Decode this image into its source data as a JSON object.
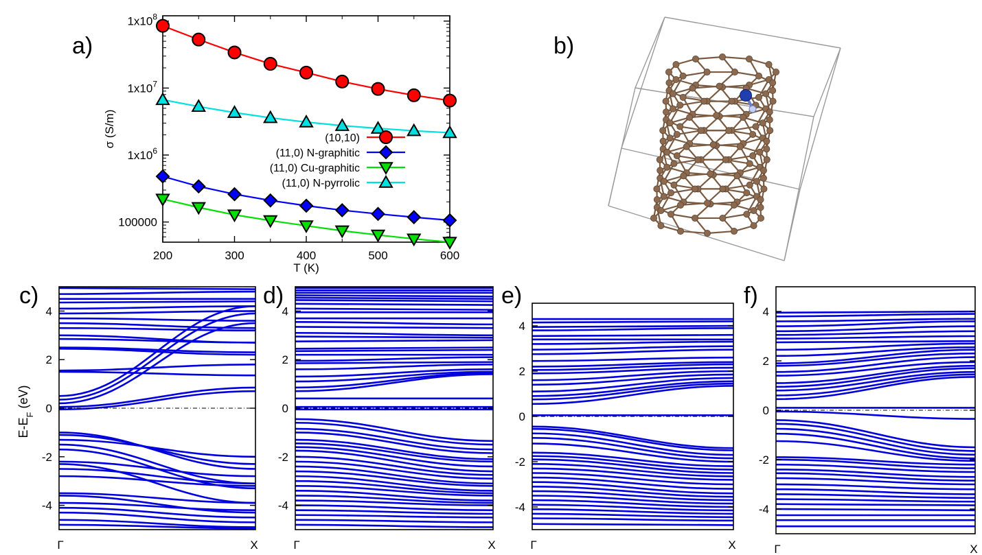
{
  "panel_labels": [
    "a)",
    "b)",
    "c)",
    "d)",
    "e)",
    "f)"
  ],
  "band_ylabel": "E-E",
  "band_ylabel_sub": "F",
  "band_ylabel_unit": " (eV)",
  "colors": {
    "series": [
      "#ff0000",
      "#0000ff",
      "#00e000",
      "#00e0e0"
    ],
    "bands": "#0000dd",
    "carbon": "#8b6a4f",
    "nitrogen": "#1f3fb0"
  },
  "chart_data": [
    {
      "type": "line",
      "panel": "a)",
      "xlabel": "T (K)",
      "ylabel": "σ (S/m)",
      "yscale": "log",
      "xlim": [
        200,
        600
      ],
      "ylim": [
        50000,
        120000000
      ],
      "xticks": [
        200,
        300,
        400,
        500,
        600
      ],
      "xtick_labels": [
        "200",
        "300",
        "400",
        "500",
        "600"
      ],
      "yticks": [
        100000,
        1000000,
        10000000,
        100000000
      ],
      "ytick_labels": [
        "100000",
        "1x10",
        "1x10",
        "1x10"
      ],
      "ytick_exponents": [
        "",
        "6",
        "7",
        "8"
      ],
      "legend_position": "center-right",
      "x": [
        200,
        250,
        300,
        350,
        400,
        450,
        500,
        550,
        600
      ],
      "series": [
        {
          "name": "(10,10)",
          "marker": "circle",
          "values": [
            85000000,
            53000000,
            34000000,
            23000000,
            17000000,
            12500000,
            9700000,
            7800000,
            6500000
          ]
        },
        {
          "name": "(11,0) N-graphitic",
          "marker": "diamond",
          "values": [
            480000,
            340000,
            260000,
            210000,
            175000,
            150000,
            132000,
            118000,
            106000
          ]
        },
        {
          "name": "(11,0) Cu-graphitic",
          "marker": "triangle-down",
          "values": [
            220000,
            165000,
            128000,
            105000,
            88000,
            74000,
            64000,
            56000,
            50000
          ]
        },
        {
          "name": "(11,0) N-pyrrolic",
          "marker": "triangle-up",
          "values": [
            6700000,
            5300000,
            4300000,
            3600000,
            3100000,
            2750000,
            2500000,
            2300000,
            2150000
          ]
        }
      ]
    },
    {
      "type": "line",
      "panel": "c)",
      "ylim": [
        -5,
        5
      ],
      "yticks": [
        -4,
        -2,
        0,
        2,
        4
      ],
      "ytick_labels": [
        "-4",
        "-2",
        "0",
        "2",
        "4"
      ],
      "xtick_labels": [
        "Γ",
        "X"
      ],
      "fermi_level": 0,
      "bands_start": [
        4.95,
        4.7,
        4.5,
        4.35,
        4.1,
        3.9,
        3.7,
        3.5,
        3.3,
        3.0,
        2.85,
        2.5,
        2.45,
        1.55,
        1.5,
        0.5,
        0.35,
        0.2,
        0.05,
        -0.05,
        -1.0,
        -1.1,
        -1.3,
        -1.5,
        -1.7,
        -2.2,
        -2.3,
        -2.5,
        -2.8,
        -3.5,
        -3.6,
        -3.9,
        -4.1,
        -4.3,
        -4.6,
        -4.8
      ],
      "bands_end": [
        4.9,
        4.8,
        4.5,
        4.4,
        4.2,
        4.0,
        3.6,
        3.3,
        3.2,
        2.7,
        2.7,
        2.3,
        2.2,
        1.8,
        1.35,
        4.2,
        3.9,
        3.5,
        0.85,
        0.7,
        -2.5,
        -2.3,
        -2.0,
        -3.1,
        -3.3,
        -2.8,
        -3.9,
        -3.1,
        -3.2,
        -3.9,
        -4.3,
        -4.2,
        -4.5,
        -4.7,
        -4.9,
        -4.95
      ]
    },
    {
      "type": "line",
      "panel": "d)",
      "ylim": [
        -5,
        5
      ],
      "yticks": [
        -4,
        -2,
        0,
        2,
        4
      ],
      "ytick_labels": [
        "-4",
        "-2",
        "0",
        "2",
        "4"
      ],
      "xtick_labels": [
        "Γ",
        "X"
      ],
      "fermi_level": 0,
      "bands_start": [
        4.95,
        4.85,
        4.75,
        4.65,
        4.55,
        4.45,
        4.3,
        4.1,
        3.95,
        3.7,
        3.55,
        3.35,
        3.1,
        2.95,
        2.75,
        2.45,
        2.35,
        2.2,
        1.95,
        1.85,
        1.6,
        1.3,
        1.1,
        0.85,
        0.7,
        0.4,
        0.05,
        -0.05,
        -0.45,
        -0.6,
        -0.85,
        -1.0,
        -1.3,
        -1.45,
        -1.6,
        -1.75,
        -2.0,
        -2.2,
        -2.4,
        -2.6,
        -2.8,
        -3.0,
        -3.2,
        -3.4,
        -3.6,
        -3.8,
        -4.0,
        -4.2,
        -4.4,
        -4.6,
        -4.8
      ],
      "bands_end": [
        4.95,
        4.85,
        4.75,
        4.6,
        4.5,
        4.4,
        4.25,
        4.05,
        3.95,
        3.7,
        3.45,
        3.3,
        3.0,
        2.9,
        2.8,
        2.5,
        2.4,
        2.2,
        2.1,
        1.9,
        1.8,
        1.6,
        1.5,
        1.45,
        1.4,
        0.4,
        0.05,
        -0.05,
        -1.35,
        -1.5,
        -1.7,
        -1.85,
        -2.1,
        -2.2,
        -2.4,
        -2.6,
        -2.75,
        -2.9,
        -3.1,
        -3.2,
        -3.4,
        -3.5,
        -3.6,
        -3.8,
        -3.9,
        -4.0,
        -4.2,
        -4.35,
        -4.5,
        -4.7,
        -4.9
      ]
    },
    {
      "type": "line",
      "panel": "e)",
      "ylim": [
        -5,
        5
      ],
      "yticks": [
        -4,
        -2,
        0,
        2,
        4
      ],
      "ytick_labels": [
        "-4",
        "-2",
        "0",
        "2",
        "4"
      ],
      "xtick_labels": [
        "Γ",
        "X"
      ],
      "fermi_level": 0,
      "bands_start": [
        4.3,
        4.15,
        3.95,
        3.8,
        3.55,
        3.4,
        3.2,
        2.95,
        2.75,
        2.45,
        2.2,
        2.05,
        1.9,
        1.6,
        1.4,
        1.1,
        0.9,
        0.75,
        0.55,
        0.05,
        -0.45,
        -0.55,
        -0.75,
        -0.95,
        -1.2,
        -1.6,
        -1.75,
        -1.9,
        -2.1,
        -2.3,
        -2.5,
        -2.7,
        -2.9,
        -3.1,
        -3.3,
        -3.5,
        -3.7,
        -3.9,
        -4.1,
        -4.3,
        -4.5,
        -4.75
      ],
      "bands_end": [
        4.3,
        4.2,
        4.0,
        3.9,
        3.6,
        3.4,
        3.3,
        3.1,
        2.95,
        2.6,
        2.4,
        2.3,
        2.15,
        2.0,
        1.85,
        1.7,
        1.55,
        1.45,
        1.35,
        0.05,
        -1.4,
        -1.5,
        -1.7,
        -1.85,
        -2.0,
        -2.2,
        -2.35,
        -2.5,
        -2.65,
        -2.8,
        -3.0,
        -3.2,
        -3.4,
        -3.55,
        -3.7,
        -3.85,
        -4.0,
        -4.15,
        -4.3,
        -4.45,
        -4.6,
        -4.8
      ]
    },
    {
      "type": "line",
      "panel": "f)",
      "ylim": [
        -5,
        5
      ],
      "yticks": [
        -4,
        -2,
        0,
        2,
        4
      ],
      "ytick_labels": [
        "-4",
        "-2",
        "0",
        "2",
        "4"
      ],
      "xtick_labels": [
        "Γ",
        "X"
      ],
      "fermi_level": 0,
      "bands_start": [
        3.95,
        3.8,
        3.6,
        3.4,
        3.2,
        3.05,
        2.9,
        2.75,
        2.45,
        2.2,
        1.9,
        1.8,
        1.55,
        1.4,
        1.1,
        0.95,
        0.8,
        0.6,
        0.45,
        0.1,
        -0.05,
        -0.4,
        -0.55,
        -0.75,
        -0.95,
        -1.25,
        -1.9,
        -2.0,
        -2.2,
        -2.4,
        -2.55,
        -2.75,
        -3.0,
        -3.2,
        -3.4,
        -3.6,
        -3.8,
        -4.0,
        -4.25,
        -4.45,
        -4.7
      ],
      "bands_end": [
        4.0,
        3.9,
        3.7,
        3.6,
        3.4,
        3.2,
        3.0,
        2.8,
        2.7,
        2.55,
        2.45,
        2.3,
        2.15,
        1.95,
        1.8,
        1.7,
        1.55,
        1.45,
        1.35,
        0.1,
        -0.35,
        -1.5,
        -1.65,
        -1.8,
        -1.95,
        -2.05,
        -2.2,
        -2.35,
        -2.5,
        -2.7,
        -2.85,
        -3.0,
        -3.2,
        -3.4,
        -3.55,
        -3.7,
        -3.85,
        -4.05,
        -4.25,
        -4.45,
        -4.7
      ]
    }
  ]
}
